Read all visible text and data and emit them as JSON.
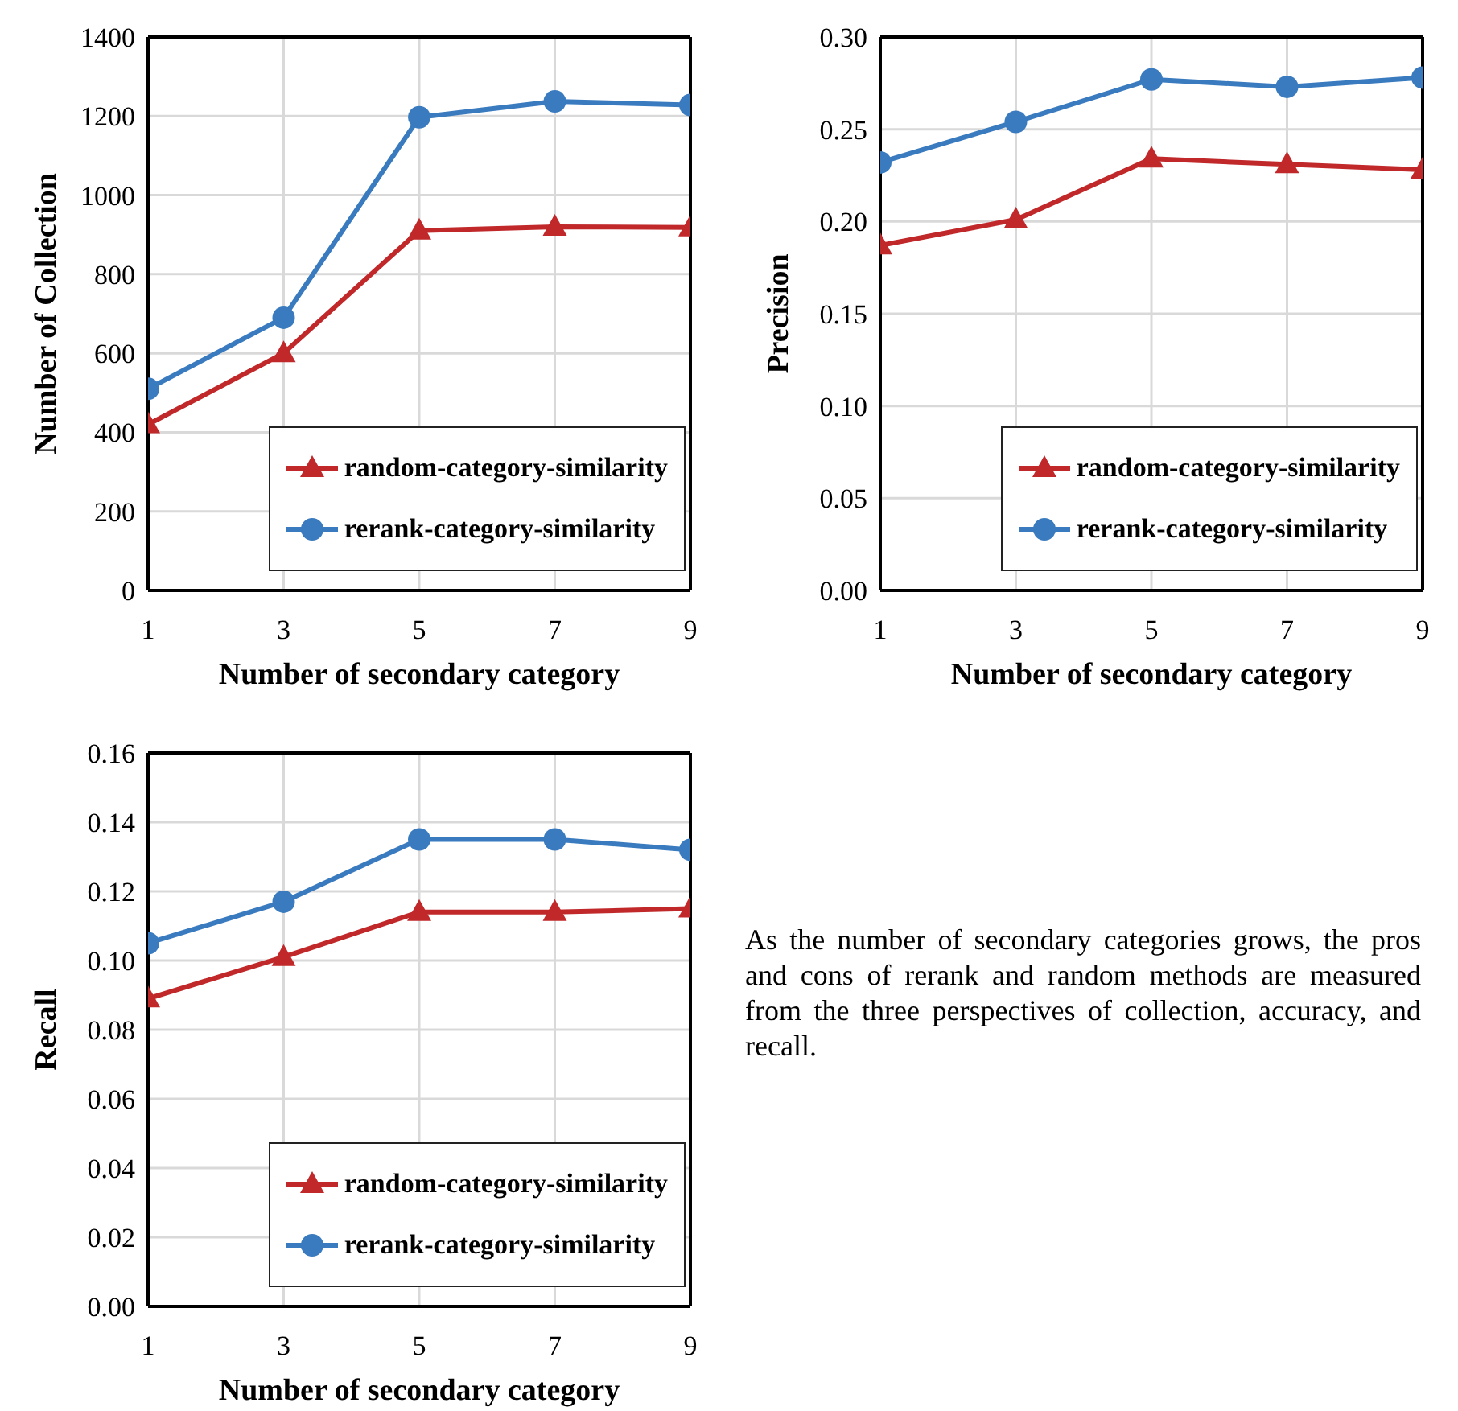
{
  "chart_data": [
    {
      "type": "line",
      "xlabel": "Number of secondary category",
      "ylabel": "Number of Collection",
      "x": [
        1,
        3,
        5,
        7,
        9
      ],
      "xlim": [
        1,
        9
      ],
      "xticks": [
        1,
        3,
        5,
        7,
        9
      ],
      "ylim": [
        0,
        1400
      ],
      "yticks": [
        0,
        200,
        400,
        600,
        800,
        1000,
        1200,
        1400
      ],
      "grid": true,
      "legend": "bottom right",
      "series": [
        {
          "name": "random-category-similarity",
          "color": "#c0282a",
          "marker": "triangle",
          "values": [
            420,
            600,
            910,
            920,
            918
          ]
        },
        {
          "name": "rerank-category-similarity",
          "color": "#3a7bbf",
          "marker": "circle",
          "values": [
            510,
            690,
            1197,
            1237,
            1228
          ]
        }
      ]
    },
    {
      "type": "line",
      "xlabel": "Number of secondary category",
      "ylabel": "Precision",
      "x": [
        1,
        3,
        5,
        7,
        9
      ],
      "xlim": [
        1,
        9
      ],
      "xticks": [
        1,
        3,
        5,
        7,
        9
      ],
      "ylim": [
        0,
        0.3
      ],
      "yticks": [
        {
          "value": 0,
          "label": "0.00"
        },
        {
          "value": 0.05,
          "label": "0.05"
        },
        {
          "value": 0.1,
          "label": "0.10"
        },
        {
          "value": 0.15,
          "label": "0.15"
        },
        {
          "value": 0.2,
          "label": "0.20"
        },
        {
          "value": 0.25,
          "label": "0.25"
        },
        {
          "value": 0.3,
          "label": "0.30"
        }
      ],
      "grid": true,
      "legend": "bottom right",
      "series": [
        {
          "name": "random-category-similarity",
          "color": "#c0282a",
          "marker": "triangle",
          "values": [
            0.187,
            0.201,
            0.234,
            0.231,
            0.228
          ]
        },
        {
          "name": "rerank-category-similarity",
          "color": "#3a7bbf",
          "marker": "circle",
          "values": [
            0.232,
            0.254,
            0.277,
            0.273,
            0.278
          ]
        }
      ]
    },
    {
      "type": "line",
      "xlabel": "Number of secondary category",
      "ylabel": "Recall",
      "x": [
        1,
        3,
        5,
        7,
        9
      ],
      "xlim": [
        1,
        9
      ],
      "xticks": [
        1,
        3,
        5,
        7,
        9
      ],
      "ylim": [
        0,
        0.16
      ],
      "yticks": [
        {
          "value": 0,
          "label": "0.00"
        },
        {
          "value": 0.02,
          "label": "0.02"
        },
        {
          "value": 0.04,
          "label": "0.04"
        },
        {
          "value": 0.06,
          "label": "0.06"
        },
        {
          "value": 0.08,
          "label": "0.08"
        },
        {
          "value": 0.1,
          "label": "0.10"
        },
        {
          "value": 0.12,
          "label": "0.12"
        },
        {
          "value": 0.14,
          "label": "0.14"
        },
        {
          "value": 0.16,
          "label": "0.16"
        }
      ],
      "grid": true,
      "legend": "bottom right",
      "series": [
        {
          "name": "random-category-similarity",
          "color": "#c0282a",
          "marker": "triangle",
          "values": [
            0.089,
            0.101,
            0.114,
            0.114,
            0.115
          ]
        },
        {
          "name": "rerank-category-similarity",
          "color": "#3a7bbf",
          "marker": "circle",
          "values": [
            0.105,
            0.117,
            0.135,
            0.135,
            0.132
          ]
        }
      ]
    },
    {
      "type": "other",
      "annotations": [
        "As the number of secondary categories grows, the pros and cons of rerank and random methods are measured from the three perspectives of collection, accuracy, and recall."
      ]
    }
  ]
}
